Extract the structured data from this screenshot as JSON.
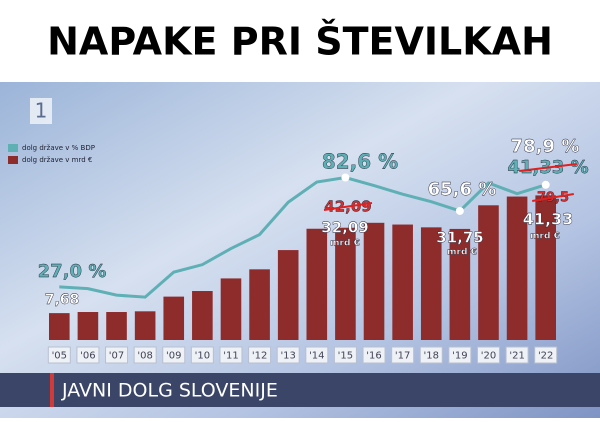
{
  "header": {
    "title": "NAPAKE PRI ŠTEVILKAH"
  },
  "logo": "1",
  "chart_data": {
    "type": "bar-line",
    "title": "JAVNI DOLG SLOVENIJE",
    "categories": [
      "'05",
      "'06",
      "'07",
      "'08",
      "'09",
      "'10",
      "'11",
      "'12",
      "'13",
      "'14",
      "'15",
      "'16",
      "'17",
      "'18",
      "'19",
      "'20",
      "'21",
      "'22"
    ],
    "series": [
      {
        "name": "dolg države v mrd  €",
        "type": "bar",
        "color": "#8e2b2b",
        "values": [
          7.68,
          8.0,
          8.0,
          8.2,
          12.4,
          14.0,
          17.6,
          20.2,
          25.7,
          31.8,
          32.09,
          33.5,
          33.0,
          32.2,
          31.75,
          38.5,
          41.0,
          41.33
        ]
      },
      {
        "name": "dolg države v % BDP",
        "type": "line",
        "axis": "y2",
        "color": "#5fb0b5",
        "values": [
          27.0,
          26.1,
          22.8,
          21.8,
          34.5,
          38.3,
          46.5,
          53.6,
          70.0,
          80.3,
          82.6,
          78.5,
          74.1,
          70.3,
          65.6,
          79.8,
          74.4,
          78.9
        ]
      }
    ],
    "ylim": [
      0,
      68.6
    ],
    "y2lim": [
      0,
      122
    ],
    "legend": "top-left",
    "annotations": [
      "82,6 %",
      "27,0 %",
      "7,68",
      "42,09",
      "32,09",
      "mrd €",
      "65,6 %",
      "31,75",
      "mrd €",
      "78,9 %",
      "41,33 %",
      "79,5",
      "41,33",
      "mrd €"
    ]
  }
}
